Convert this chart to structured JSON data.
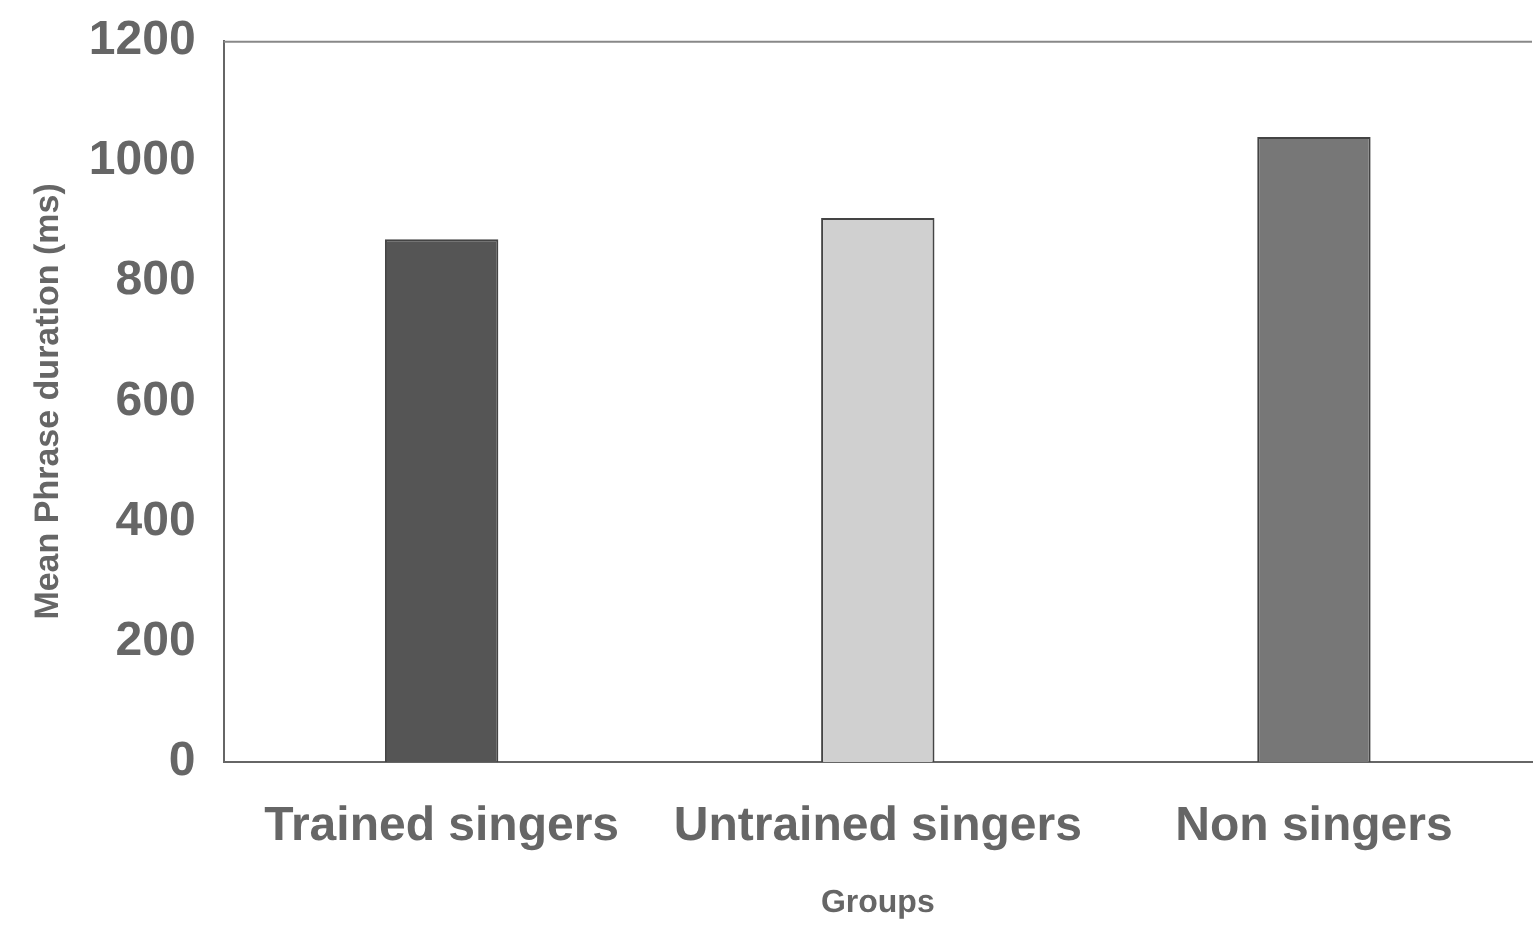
{
  "chart_data": {
    "type": "bar",
    "xlabel": "Groups",
    "ylabel": "Mean Phrase duration (ms)",
    "categories": [
      "Trained singers",
      "Untrained singers",
      "Non singers"
    ],
    "values": [
      870,
      905,
      1040
    ],
    "colors": [
      "#555555",
      "#d0d0d0",
      "#777777"
    ],
    "ylim": [
      0,
      1200
    ],
    "yticks": [
      0,
      200,
      400,
      600,
      800,
      1000,
      1200
    ],
    "grid": false,
    "legend": false
  }
}
